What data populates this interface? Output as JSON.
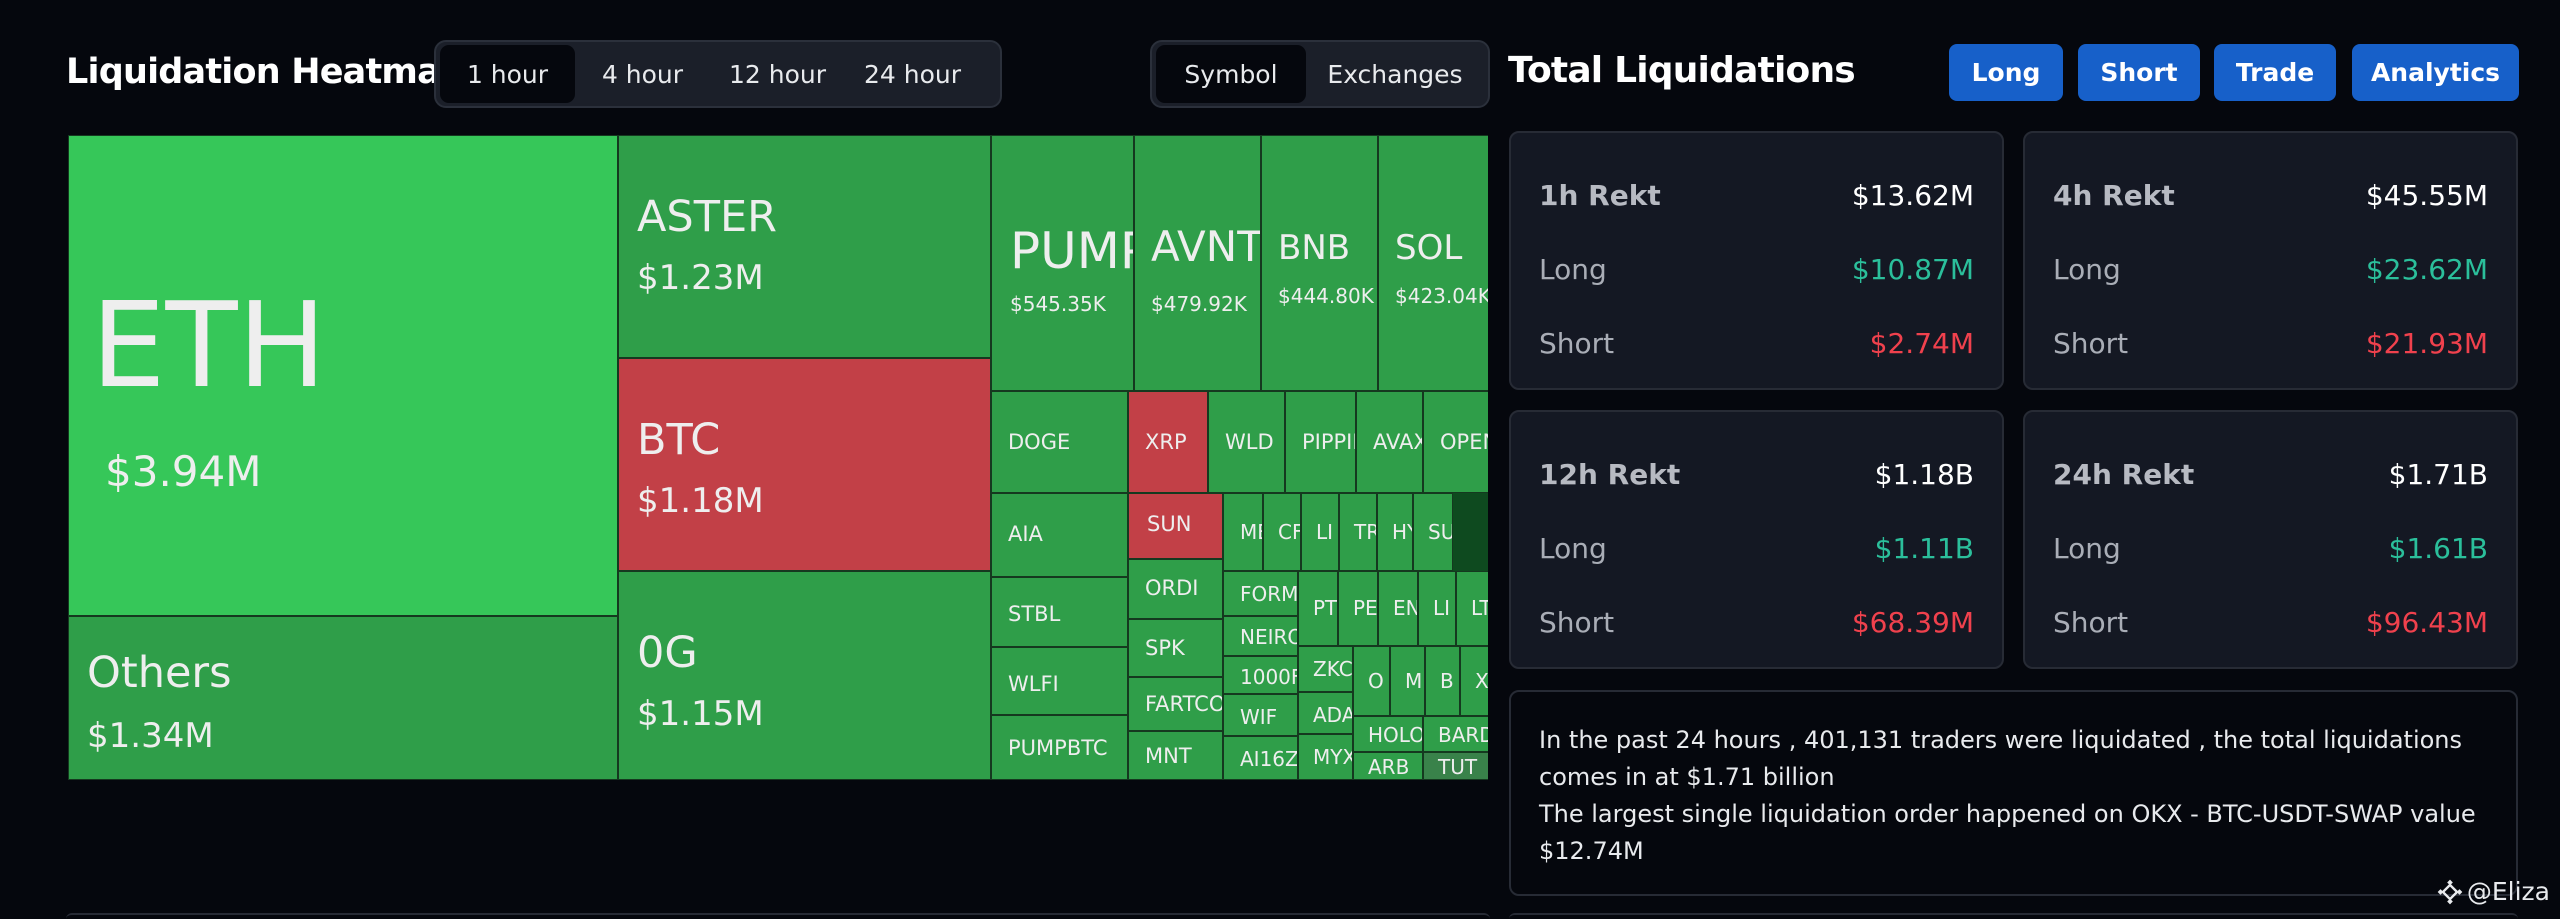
{
  "heatmap": {
    "title": "Liquidation Heatmap",
    "time_tabs": [
      "1 hour",
      "4 hour",
      "12 hour",
      "24 hour"
    ],
    "active_time_tab": "1 hour",
    "mode_tabs": [
      "Symbol",
      "Exchanges"
    ],
    "active_mode_tab": "Symbol",
    "colors": {
      "long_dominant": "#36c759",
      "medium": "#2f9e49",
      "short_dominant": "#c24047"
    },
    "tiles": [
      {
        "symbol": "ETH",
        "value": "$3.94M"
      },
      {
        "symbol": "Others",
        "value": "$1.34M"
      },
      {
        "symbol": "ASTER",
        "value": "$1.23M"
      },
      {
        "symbol": "BTC",
        "value": "$1.18M"
      },
      {
        "symbol": "0G",
        "value": "$1.15M"
      },
      {
        "symbol": "PUMP",
        "value": "$545.35K"
      },
      {
        "symbol": "AVNT",
        "value": "$479.92K"
      },
      {
        "symbol": "BNB",
        "value": "$444.80K"
      },
      {
        "symbol": "SOL",
        "value": "$423.04K"
      },
      {
        "symbol": "DOGE"
      },
      {
        "symbol": "XRP"
      },
      {
        "symbol": "WLD"
      },
      {
        "symbol": "PIPPIN"
      },
      {
        "symbol": "AVAX"
      },
      {
        "symbol": "OPEN"
      },
      {
        "symbol": "AIA"
      },
      {
        "symbol": "SUN"
      },
      {
        "symbol": "ME"
      },
      {
        "symbol": "CF"
      },
      {
        "symbol": "LI"
      },
      {
        "symbol": "TR"
      },
      {
        "symbol": "HY"
      },
      {
        "symbol": "SU"
      },
      {
        "symbol": "STBL"
      },
      {
        "symbol": "ORDI"
      },
      {
        "symbol": "FORM"
      },
      {
        "symbol": "PT"
      },
      {
        "symbol": "PE"
      },
      {
        "symbol": "EN"
      },
      {
        "symbol": "LI"
      },
      {
        "symbol": "LT"
      },
      {
        "symbol": "NEIRO"
      },
      {
        "symbol": "SPK"
      },
      {
        "symbol": "1000F"
      },
      {
        "symbol": "ZKC"
      },
      {
        "symbol": "O"
      },
      {
        "symbol": "M"
      },
      {
        "symbol": "B"
      },
      {
        "symbol": "X"
      },
      {
        "symbol": "WLFI"
      },
      {
        "symbol": "FARTCOIN"
      },
      {
        "symbol": "WIF"
      },
      {
        "symbol": "ADA"
      },
      {
        "symbol": "HOLO"
      },
      {
        "symbol": "BARD"
      },
      {
        "symbol": "PUMPBTC"
      },
      {
        "symbol": "MNT"
      },
      {
        "symbol": "AI16Z"
      },
      {
        "symbol": "MYX"
      },
      {
        "symbol": "ARB"
      },
      {
        "symbol": "TUT"
      }
    ]
  },
  "totals": {
    "title": "Total Liquidations",
    "buttons": [
      "Long",
      "Short",
      "Trade",
      "Analytics"
    ],
    "cards": [
      {
        "period": "1h Rekt",
        "total": "$13.62M",
        "long_label": "Long",
        "long": "$10.87M",
        "short_label": "Short",
        "short": "$2.74M"
      },
      {
        "period": "4h Rekt",
        "total": "$45.55M",
        "long_label": "Long",
        "long": "$23.62M",
        "short_label": "Short",
        "short": "$21.93M"
      },
      {
        "period": "12h Rekt",
        "total": "$1.18B",
        "long_label": "Long",
        "long": "$1.11B",
        "short_label": "Short",
        "short": "$68.39M"
      },
      {
        "period": "24h Rekt",
        "total": "$1.71B",
        "long_label": "Long",
        "long": "$1.61B",
        "short_label": "Short",
        "short": "$96.43M"
      }
    ],
    "summary_line1": "In the past 24 hours , 401,131 traders were liquidated , the total liquidations comes in at $1.71 billion",
    "summary_line2": "The largest single liquidation order happened on OKX - BTC-USDT-SWAP value $12.74M"
  },
  "watermark": {
    "icon": "binance-square-icon",
    "text": "@Eliza"
  }
}
